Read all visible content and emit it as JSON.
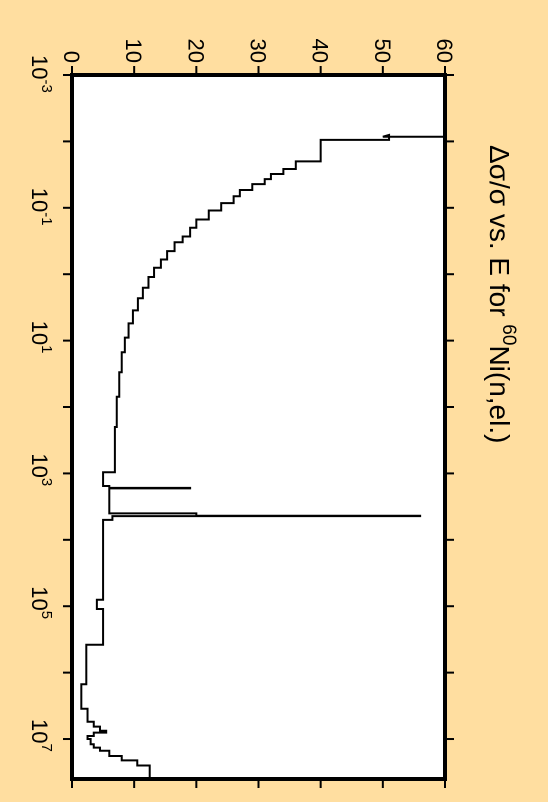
{
  "chart_data": {
    "type": "line",
    "orientation": "rotated-90-clockwise",
    "title": {
      "prefix": "Δσ/σ vs. E for ",
      "superscript": "60",
      "suffix": "Ni(n,el.)"
    },
    "xscale": "log",
    "xlim": [
      0.001,
      40000000
    ],
    "ylim": [
      0,
      60
    ],
    "x_ticks": [
      {
        "value": 0.001,
        "base": "10",
        "exp": "-3"
      },
      {
        "value": 0.1,
        "base": "10",
        "exp": "-1"
      },
      {
        "value": 10,
        "base": "10",
        "exp": "1"
      },
      {
        "value": 1000,
        "base": "10",
        "exp": "3"
      },
      {
        "value": 100000,
        "base": "10",
        "exp": "5"
      },
      {
        "value": 10000000,
        "base": "10",
        "exp": "7"
      }
    ],
    "x_minor_ticks": [
      0.01,
      1,
      100,
      10000,
      1000000
    ],
    "y_ticks": [
      0,
      10,
      20,
      30,
      40,
      50,
      60
    ],
    "grid": false,
    "colors": {
      "background": "#FFDEA0",
      "plot_area": "#FFFFFF",
      "line": "#000000"
    },
    "series": [
      {
        "style": "step",
        "points": [
          [
            0.001,
            60
          ],
          [
            0.0085,
            60
          ],
          [
            0.0085,
            50
          ],
          [
            0.008,
            51
          ],
          [
            0.0095,
            51
          ],
          [
            0.0095,
            40
          ],
          [
            0.02,
            40
          ],
          [
            0.02,
            36
          ],
          [
            0.026,
            36
          ],
          [
            0.026,
            34
          ],
          [
            0.031,
            34
          ],
          [
            0.031,
            32
          ],
          [
            0.037,
            32
          ],
          [
            0.037,
            31
          ],
          [
            0.044,
            31
          ],
          [
            0.044,
            29
          ],
          [
            0.054,
            29
          ],
          [
            0.054,
            27
          ],
          [
            0.067,
            27
          ],
          [
            0.067,
            26
          ],
          [
            0.085,
            26
          ],
          [
            0.085,
            24
          ],
          [
            0.11,
            24
          ],
          [
            0.11,
            22
          ],
          [
            0.15,
            22
          ],
          [
            0.15,
            20
          ],
          [
            0.2,
            20
          ],
          [
            0.2,
            19
          ],
          [
            0.27,
            19
          ],
          [
            0.27,
            17.8
          ],
          [
            0.33,
            17.8
          ],
          [
            0.33,
            16.5
          ],
          [
            0.45,
            16.5
          ],
          [
            0.45,
            15.3
          ],
          [
            0.6,
            15.3
          ],
          [
            0.6,
            14.3
          ],
          [
            0.8,
            14.3
          ],
          [
            0.8,
            13.2
          ],
          [
            1.1,
            13.2
          ],
          [
            1.1,
            12.3
          ],
          [
            1.6,
            12.3
          ],
          [
            1.6,
            11.4
          ],
          [
            2.3,
            11.4
          ],
          [
            2.3,
            10.6
          ],
          [
            3.5,
            10.6
          ],
          [
            3.5,
            9.8
          ],
          [
            5.5,
            9.8
          ],
          [
            5.5,
            9.1
          ],
          [
            9,
            9.1
          ],
          [
            9,
            8.5
          ],
          [
            15,
            8.5
          ],
          [
            15,
            8.0
          ],
          [
            30,
            8.0
          ],
          [
            30,
            7.6
          ],
          [
            70,
            7.6
          ],
          [
            70,
            7.2
          ],
          [
            200,
            7.2
          ],
          [
            200,
            6.9
          ],
          [
            960,
            6.9
          ],
          [
            960,
            5.0
          ],
          [
            1550,
            5.0
          ],
          [
            1550,
            6.0
          ],
          [
            1650,
            6.0
          ],
          [
            1650,
            19
          ],
          [
            1680,
            19
          ],
          [
            1680,
            6.0
          ],
          [
            4000,
            6.0
          ],
          [
            4000,
            20
          ],
          [
            4350,
            20
          ],
          [
            4350,
            56
          ],
          [
            4400,
            56
          ],
          [
            4400,
            6.5
          ],
          [
            5000,
            6.5
          ],
          [
            5000,
            5.0
          ],
          [
            80000,
            5.0
          ],
          [
            80000,
            4.0
          ],
          [
            110000,
            4.0
          ],
          [
            110000,
            5.0
          ],
          [
            380000,
            5.0
          ],
          [
            380000,
            2.3
          ],
          [
            1500000,
            2.3
          ],
          [
            1500000,
            1.5
          ],
          [
            3500000,
            1.5
          ],
          [
            3500000,
            2.5
          ],
          [
            5500000,
            2.5
          ],
          [
            5500000,
            3.5
          ],
          [
            6500000,
            3.5
          ],
          [
            6500000,
            4.5
          ],
          [
            7500000,
            4.5
          ],
          [
            7500000,
            5.5
          ],
          [
            8000000,
            5.5
          ],
          [
            8000000,
            3.5
          ],
          [
            9000000,
            3.5
          ],
          [
            9000000,
            2.5
          ],
          [
            10000000,
            2.5
          ],
          [
            10000000,
            3.0
          ],
          [
            12000000,
            3.0
          ],
          [
            12000000,
            3.5
          ],
          [
            13500000,
            3.5
          ],
          [
            13500000,
            4.5
          ],
          [
            15000000,
            4.5
          ],
          [
            15000000,
            6.0
          ],
          [
            18000000,
            6.0
          ],
          [
            18000000,
            8.0
          ],
          [
            21000000,
            8.0
          ],
          [
            21000000,
            10.5
          ],
          [
            25000000,
            10.5
          ],
          [
            25000000,
            12.5
          ],
          [
            40000000,
            12.5
          ]
        ]
      }
    ]
  }
}
